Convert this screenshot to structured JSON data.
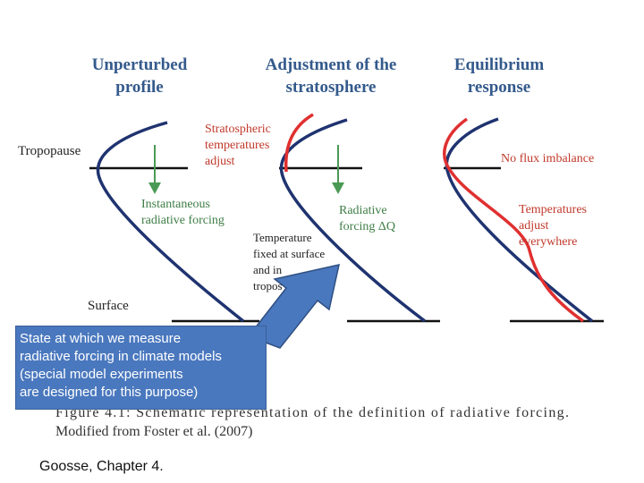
{
  "headings": {
    "col1": [
      "Unperturbed",
      "profile"
    ],
    "col2": [
      "Adjustment of the",
      "stratosphere"
    ],
    "col3": [
      "Equilibrium",
      "response"
    ]
  },
  "labels": {
    "tropopause": "Tropopause",
    "surface": "Surface",
    "strat_temps": [
      "Stratospheric",
      "temperatures",
      "adjust"
    ],
    "instantaneous": [
      "Instantaneous",
      "radiative forcing"
    ],
    "radiative_dq": [
      "Radiative",
      "forcing ΔQ"
    ],
    "temp_fixed": [
      "Temperature",
      "fixed at surface",
      "and in",
      "tropos"
    ],
    "no_flux": "No flux imbalance",
    "temps_adjust": [
      "Temperatures",
      "adjust",
      "everywhere"
    ]
  },
  "caption": {
    "line1": "Figure  4.1:  Schematic  representation  of  the  definition  of  radiative  forcing.",
    "line2": "Modified from Foster et al. (2007)"
  },
  "callout": {
    "lines": [
      "State at which we measure",
      "radiative forcing in climate models",
      "(special model experiments",
      "are designed for this purpose)"
    ]
  },
  "credit": "Goosse, Chapter 4.",
  "colors": {
    "profile": "#1f3370",
    "perturbed": "#e03030",
    "arrow_green": "#4a9a55",
    "heading": "#345a8c",
    "callout_fill": "#4a78be",
    "callout_arrow": "#4a78be"
  }
}
